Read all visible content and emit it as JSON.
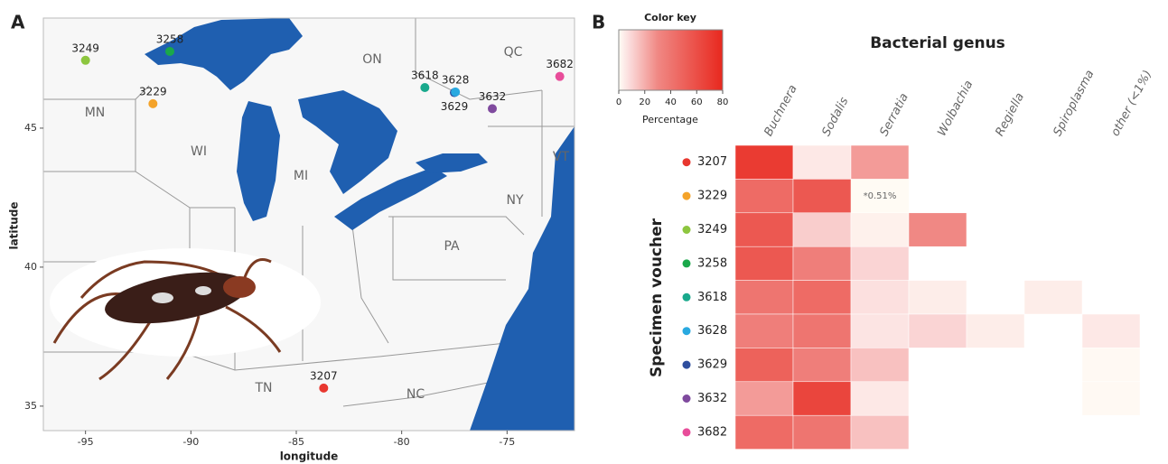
{
  "chart_data": [
    {
      "type": "scatter",
      "title": "A",
      "xlabel": "longitude",
      "ylabel": "latitude",
      "xlim": [
        -97,
        -71.8
      ],
      "ylim": [
        34.12,
        48.96
      ],
      "xticks": [
        -95,
        -90,
        -85,
        -80,
        -75
      ],
      "yticks": [
        35,
        40,
        45
      ],
      "region_labels": [
        "MN",
        "WI",
        "MI",
        "ON",
        "QC",
        "VT",
        "NY",
        "PA",
        "TN",
        "NC"
      ],
      "series": [
        {
          "name": "3207",
          "color": "#e8372f",
          "x": [
            -83.7
          ],
          "values": [
            35.65
          ]
        },
        {
          "name": "3229",
          "color": "#f4a32a",
          "x": [
            -91.8
          ],
          "values": [
            45.88
          ]
        },
        {
          "name": "3249",
          "color": "#8dc63f",
          "x": [
            -95.0
          ],
          "values": [
            47.44
          ]
        },
        {
          "name": "3258",
          "color": "#1aa84a",
          "x": [
            -91.0
          ],
          "values": [
            47.76
          ]
        },
        {
          "name": "3618",
          "color": "#19a98c",
          "x": [
            -78.9
          ],
          "values": [
            46.46
          ]
        },
        {
          "name": "3628",
          "color": "#29a9e0",
          "x": [
            -77.45
          ],
          "values": [
            46.3
          ]
        },
        {
          "name": "3629",
          "color": "#2e4e9e",
          "x": [
            -77.5
          ],
          "values": [
            46.28
          ]
        },
        {
          "name": "3632",
          "color": "#7f4a9e",
          "x": [
            -75.7
          ],
          "values": [
            45.7
          ]
        },
        {
          "name": "3682",
          "color": "#e84d9a",
          "x": [
            -72.5
          ],
          "values": [
            46.86
          ]
        }
      ]
    },
    {
      "type": "heatmap",
      "title": "B",
      "xlabel": "Bacterial genus",
      "ylabel": "Specimen voucher",
      "categories": [
        "Buchnera",
        "Sodalis",
        "Serratia",
        "Wolbachia",
        "Regiella",
        "Spiroplasma",
        "other (<1%)"
      ],
      "rows": [
        "3207",
        "3229",
        "3249",
        "3258",
        "3618",
        "3628",
        "3629",
        "3632",
        "3682"
      ],
      "values": [
        [
          70,
          5,
          25,
          null,
          null,
          null,
          null
        ],
        [
          45,
          55,
          0.51,
          null,
          null,
          null,
          null
        ],
        [
          55,
          12,
          3,
          30,
          null,
          null,
          null
        ],
        [
          55,
          35,
          10,
          null,
          null,
          null,
          null
        ],
        [
          40,
          45,
          7,
          4,
          null,
          4,
          null
        ],
        [
          35,
          40,
          6,
          10,
          4,
          null,
          5
        ],
        [
          50,
          35,
          15,
          null,
          null,
          null,
          1
        ],
        [
          25,
          65,
          5,
          null,
          null,
          null,
          1
        ],
        [
          45,
          40,
          15,
          null,
          null,
          null,
          null
        ]
      ],
      "value_labels": [
        [
          null,
          null,
          null,
          null,
          null,
          null,
          null
        ],
        [
          null,
          null,
          "*0.51%",
          null,
          null,
          null,
          null
        ],
        [
          null,
          null,
          null,
          null,
          null,
          null,
          null
        ],
        [
          null,
          null,
          null,
          null,
          null,
          null,
          null
        ],
        [
          null,
          null,
          null,
          null,
          null,
          null,
          null
        ],
        [
          null,
          null,
          null,
          null,
          null,
          null,
          null
        ],
        [
          null,
          null,
          null,
          null,
          null,
          null,
          null
        ],
        [
          null,
          null,
          null,
          null,
          null,
          null,
          null
        ],
        [
          null,
          null,
          null,
          null,
          null,
          null,
          null
        ]
      ],
      "colorbar": {
        "title": "Color key",
        "label": "Percentage",
        "lim": [
          0,
          80
        ],
        "ticks": [
          0,
          20,
          40,
          60,
          80
        ],
        "stops": [
          [
            0,
            "#fffdf6"
          ],
          [
            8,
            "#fbdcdc"
          ],
          [
            30,
            "#f08884"
          ],
          [
            80,
            "#e8281e"
          ]
        ]
      }
    }
  ]
}
